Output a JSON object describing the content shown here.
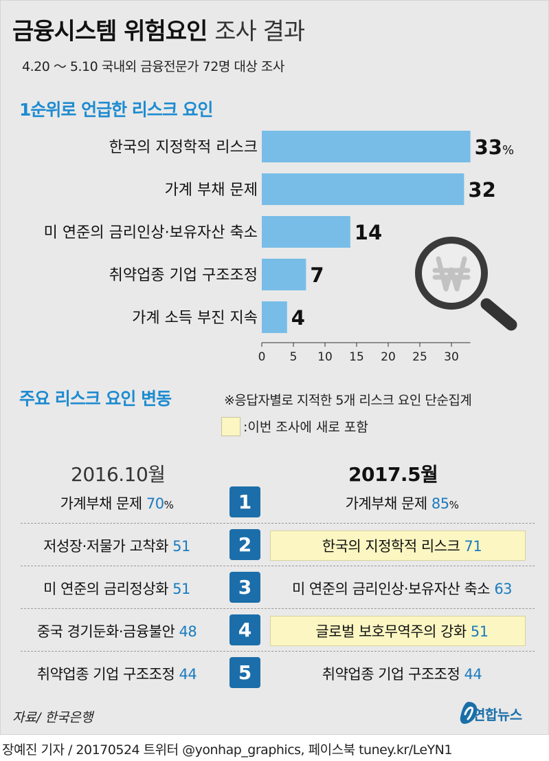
{
  "title": {
    "bold": "금융시스템 위험요인",
    "light": "조사 결과"
  },
  "subtitle": "4.20 ～ 5.10 국내외 금융전문가 72명 대상 조사",
  "section1": {
    "heading": "1순위로 언급한 리스크 요인"
  },
  "chart_data": {
    "type": "bar",
    "orientation": "horizontal",
    "title": "1순위로 언급한 리스크 요인",
    "categories": [
      "한국의 지정학적 리스크",
      "가계 부채 문제",
      "미 연준의 금리인상·보유자산 축소",
      "취약업종 기업 구조조정",
      "가계 소득 부진 지속"
    ],
    "values": [
      33,
      32,
      14,
      7,
      4
    ],
    "value_labels": [
      "33",
      "32",
      "14",
      "7",
      "4"
    ],
    "unit": "%",
    "xlim": [
      0,
      33
    ],
    "xticks": [
      "0",
      "5",
      "10",
      "15",
      "20",
      "25",
      "30"
    ],
    "bar_color": "#78bde7"
  },
  "section2": {
    "heading": "주요 리스크 요인 변동",
    "note": "※응답자별로 지적한 5개 리스크 요인 단순집계",
    "legend": ":이번 조사에 새로 포함",
    "left_header": "2016.10월",
    "right_header": "2017.5월",
    "rows": [
      {
        "rank": "1",
        "left_label": "가계부채 문제",
        "left_value": "70",
        "left_unit": "%",
        "right_label": "가계부채 문제",
        "right_value": "85",
        "right_unit": "%",
        "right_new": false
      },
      {
        "rank": "2",
        "left_label": "저성장·저물가 고착화",
        "left_value": "51",
        "left_unit": "",
        "right_label": "한국의 지정학적 리스크",
        "right_value": "71",
        "right_unit": "",
        "right_new": true
      },
      {
        "rank": "3",
        "left_label": "미 연준의 금리정상화",
        "left_value": "51",
        "left_unit": "",
        "right_label": "미 연준의 금리인상·보유자산 축소",
        "right_value": "63",
        "right_unit": "",
        "right_new": false
      },
      {
        "rank": "4",
        "left_label": "중국 경기둔화·금융불안",
        "left_value": "48",
        "left_unit": "",
        "right_label": "글로벌 보호무역주의 강화",
        "right_value": "51",
        "right_unit": "",
        "right_new": true
      },
      {
        "rank": "5",
        "left_label": "취약업종 기업 구조조정",
        "left_value": "44",
        "left_unit": "",
        "right_label": "취약업종 기업 구조조정",
        "right_value": "44",
        "right_unit": "",
        "right_new": false
      }
    ]
  },
  "source": "자료/ 한국은행",
  "logo_text": "연합뉴스",
  "footer": "장예진 기자 / 20170524 트위터 @yonhap_graphics, 페이스북 tuney.kr/LeYN1",
  "colors": {
    "accent": "#1d8bd0",
    "bar": "#78bde7",
    "rank_box": "#1b6eaa",
    "highlight": "#fbf6c2",
    "background": "#e9e9e9"
  }
}
